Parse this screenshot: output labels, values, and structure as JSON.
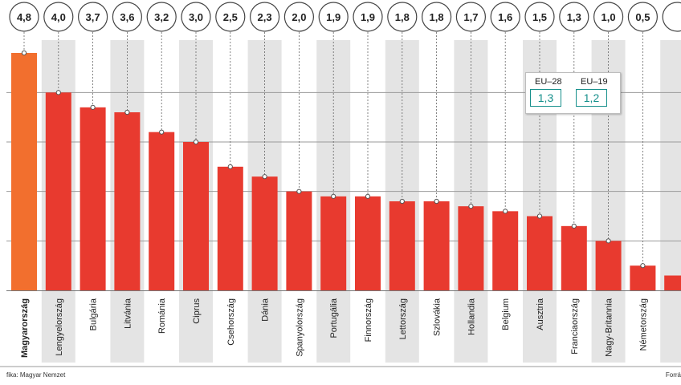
{
  "chart_data": {
    "type": "bar",
    "categories": [
      "Magyarország",
      "Lengyelország",
      "Bulgária",
      "Litvánia",
      "Románia",
      "Ciprus",
      "Csehország",
      "Dánia",
      "Spanyolország",
      "Portugália",
      "Finnország",
      "Lettország",
      "Szlovákia",
      "Hollandia",
      "Belgium",
      "Ausztria",
      "Franciaország",
      "Nagy-Britannia",
      "Németország",
      ""
    ],
    "values": [
      4.8,
      4.0,
      3.7,
      3.6,
      3.2,
      3.0,
      2.5,
      2.3,
      2.0,
      1.9,
      1.9,
      1.8,
      1.8,
      1.7,
      1.6,
      1.5,
      1.3,
      1.0,
      0.5,
      0.3
    ],
    "value_labels": [
      "4,8",
      "4,0",
      "3,7",
      "3,6",
      "3,2",
      "3,0",
      "2,5",
      "2,3",
      "2,0",
      "1,9",
      "1,9",
      "1,8",
      "1,8",
      "1,7",
      "1,6",
      "1,5",
      "1,3",
      "1,0",
      "0,5",
      ""
    ],
    "ylim": [
      0,
      4.8
    ],
    "gridlines": [
      1,
      2,
      3,
      4
    ],
    "highlight_index": 0,
    "colors": {
      "highlight": "#f26f2e",
      "bar": "#e83a2f",
      "stripe": "#e4e4e4",
      "grid": "#9a9a9a",
      "accent": "#17908c"
    }
  },
  "averages": {
    "eu28": {
      "label": "EU–28",
      "value": "1,3"
    },
    "eu19": {
      "label": "EU–19",
      "value": "1,2"
    }
  },
  "footer": {
    "left": "fika: Magyar Nemzet",
    "right": "Forrá"
  }
}
